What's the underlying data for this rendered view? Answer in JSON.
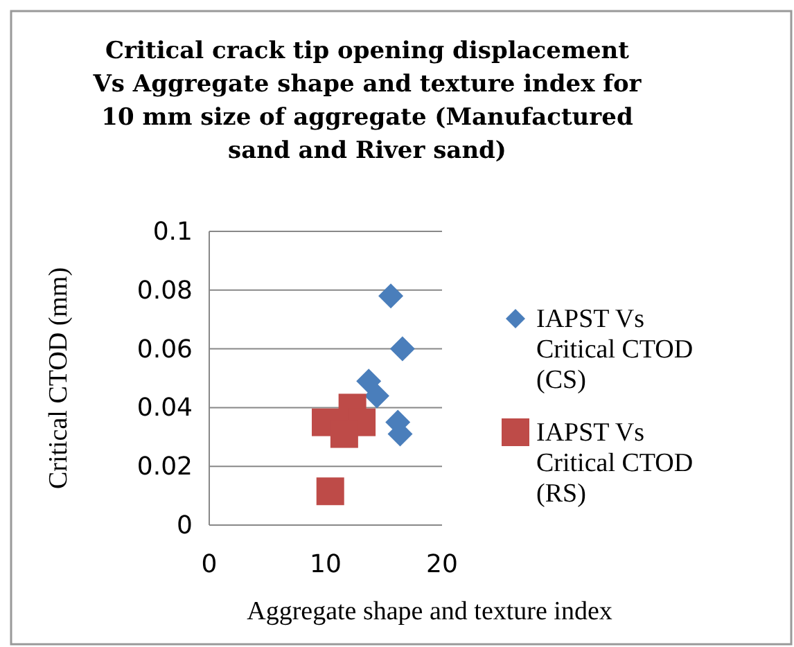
{
  "chart_data": {
    "type": "scatter",
    "title": "Critical crack tip opening displacement Vs Aggregate shape and texture index for 10 mm size of aggregate (Manufactured sand and River sand)",
    "xlabel": "Aggregate shape and texture index",
    "ylabel": "Critical CTOD (mm)",
    "xlim": [
      0,
      20
    ],
    "xticks": [
      0,
      10,
      20
    ],
    "ylim": [
      0,
      0.1
    ],
    "yticks": [
      0,
      0.02,
      0.04,
      0.06,
      0.08,
      0.1
    ],
    "grid": "y",
    "legend": "right",
    "series": [
      {
        "name": "IAPST Vs Critical CTOD (CS)",
        "color": "#4a7ebb",
        "marker": "diamond",
        "x": [
          15.6,
          16.6,
          13.7,
          14.4,
          16.2,
          16.4
        ],
        "values": [
          0.078,
          0.06,
          0.049,
          0.044,
          0.035,
          0.031
        ]
      },
      {
        "name": "IAPST Vs Critical CTOD (RS)",
        "color": "#be4b48",
        "marker": "square",
        "x": [
          12.3,
          10.0,
          13.1,
          11.6,
          10.4
        ],
        "values": [
          0.04,
          0.035,
          0.035,
          0.031,
          0.0115
        ]
      }
    ]
  }
}
